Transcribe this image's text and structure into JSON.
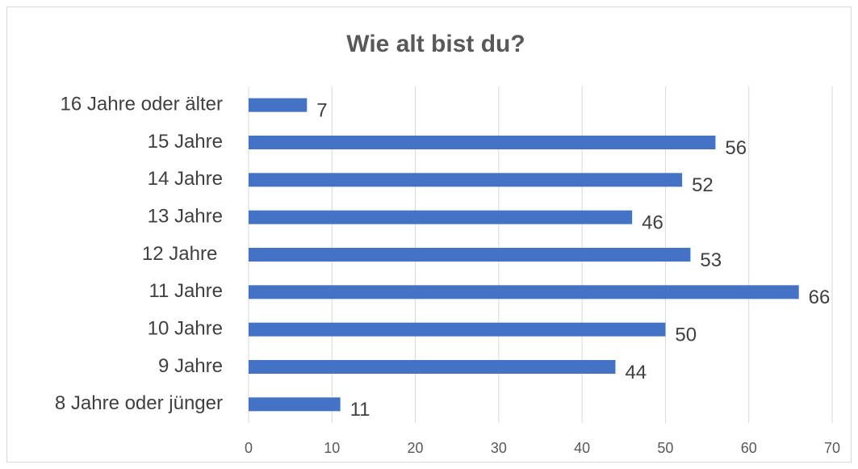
{
  "chart_data": {
    "type": "bar",
    "orientation": "horizontal",
    "title": "Wie alt bist du?",
    "categories": [
      "16 Jahre oder älter",
      "15 Jahre",
      "14 Jahre",
      "13 Jahre",
      "12 Jahre ",
      "11 Jahre",
      "10 Jahre",
      "9 Jahre",
      "8 Jahre oder jünger"
    ],
    "values": [
      7,
      56,
      52,
      46,
      53,
      66,
      50,
      44,
      11
    ],
    "color": "#4472c4",
    "xlim": [
      0,
      70
    ],
    "xticks": [
      0,
      10,
      20,
      30,
      40,
      50,
      60,
      70
    ],
    "grid": true
  }
}
